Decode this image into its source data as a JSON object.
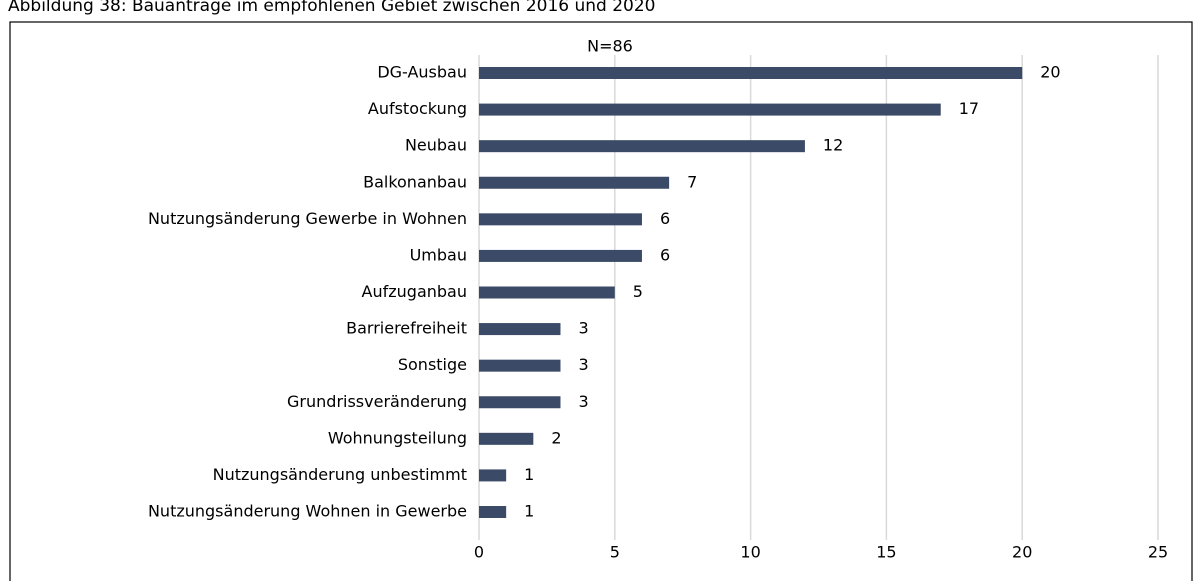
{
  "chart_data": {
    "type": "bar",
    "orientation": "horizontal",
    "title": "Abbildung 38: Bauanträge im empfohlenen Gebiet zwischen 2016 und 2020",
    "annotation": "N=86",
    "categories": [
      "DG-Ausbau",
      "Aufstockung",
      "Neubau",
      "Balkonanbau",
      "Nutzungsänderung Gewerbe in Wohnen",
      "Umbau",
      "Aufzuganbau",
      "Barrierefreiheit",
      "Sonstige",
      "Grundrissveränderung",
      "Wohnungsteilung",
      "Nutzungsänderung unbestimmt",
      "Nutzungsänderung Wohnen in Gewerbe"
    ],
    "values": [
      20,
      17,
      12,
      7,
      6,
      6,
      5,
      3,
      3,
      3,
      2,
      1,
      1
    ],
    "color": "#3b4a66",
    "xlim": [
      0,
      25
    ],
    "xticks": [
      0,
      5,
      10,
      15,
      20,
      25
    ],
    "grid": true
  }
}
